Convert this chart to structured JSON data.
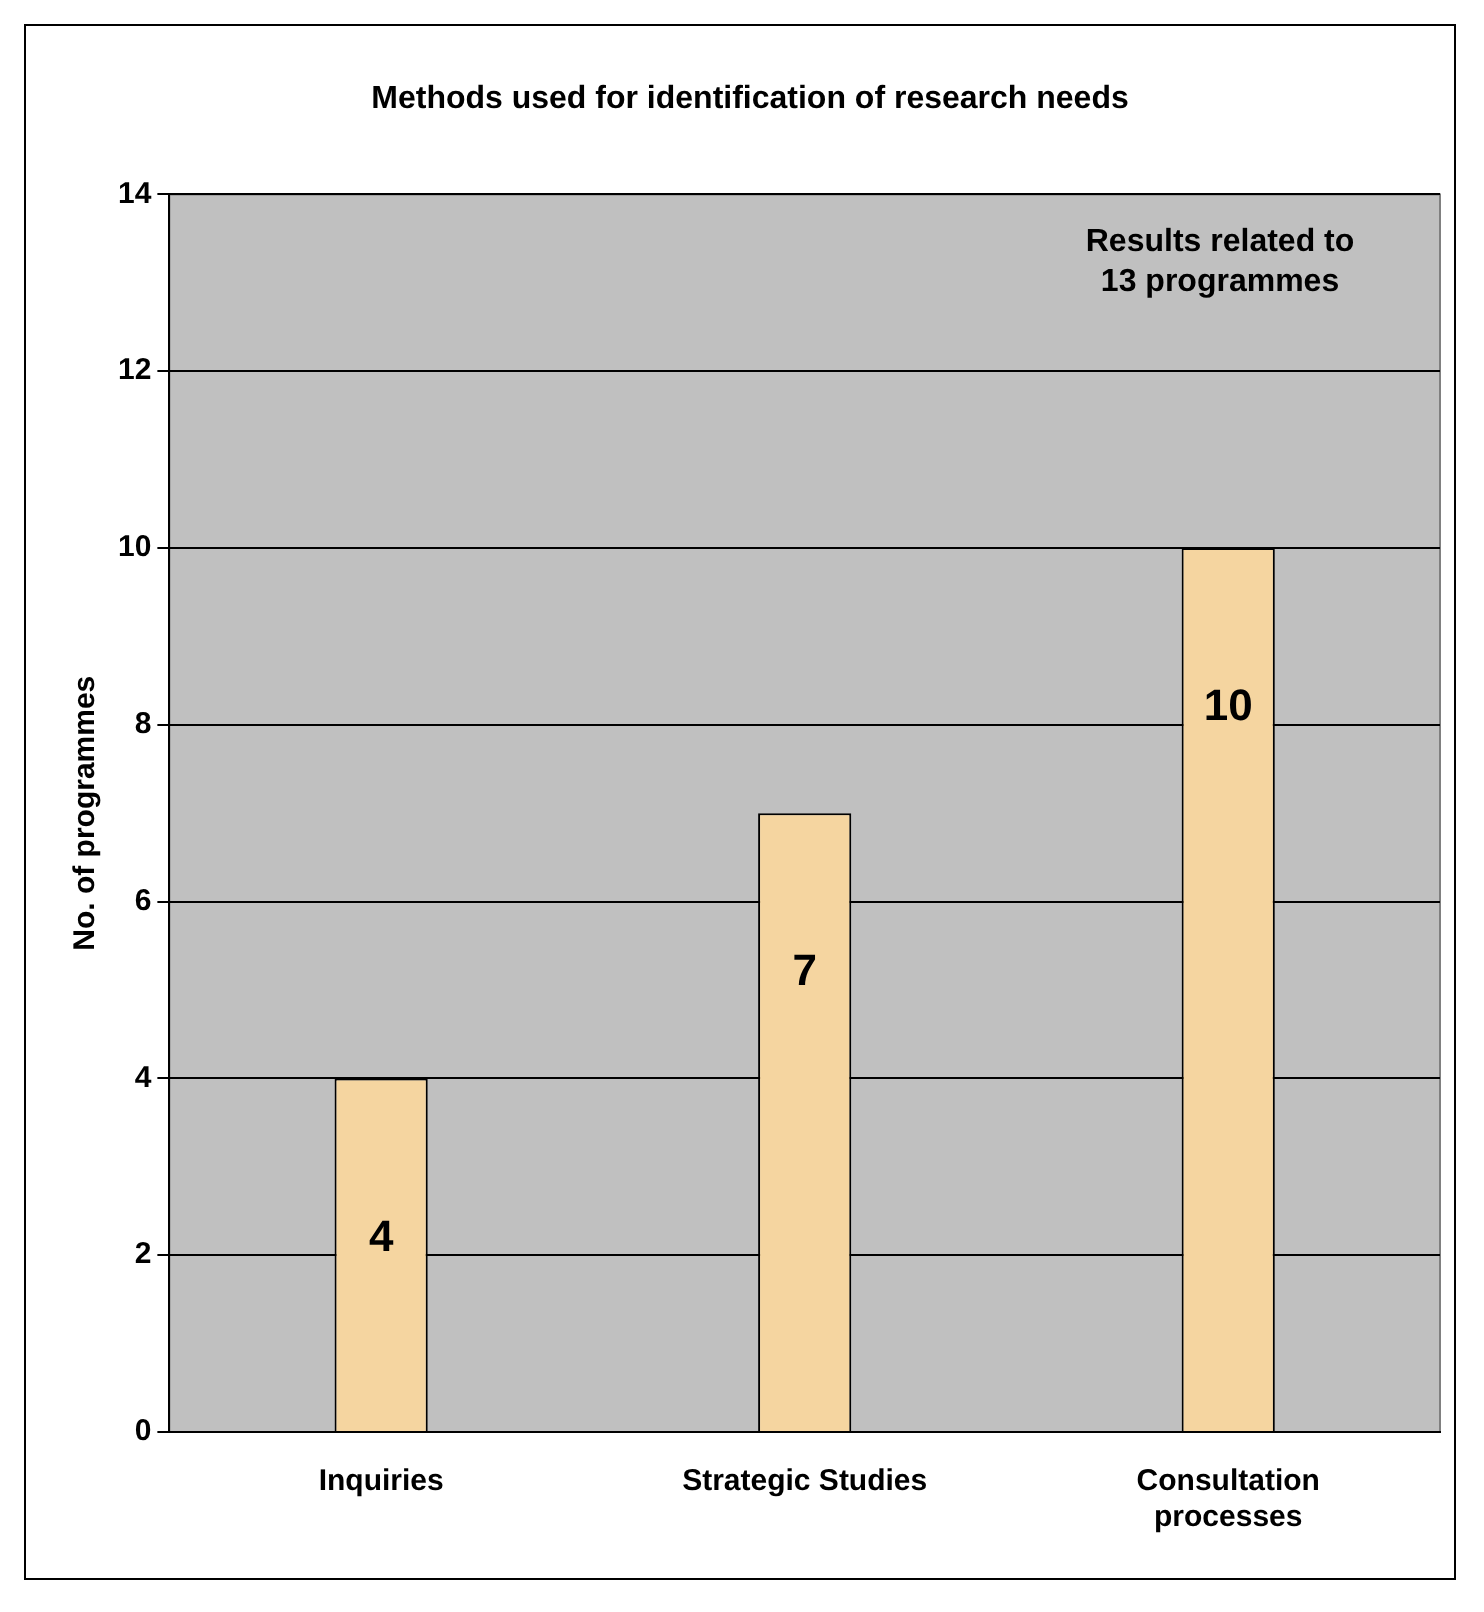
{
  "chart_data": {
    "type": "bar",
    "title": "Methods used for identification of research needs",
    "ylabel": "No. of programmes",
    "categories": [
      "Inquiries",
      "Strategic Studies",
      "Consultation processes"
    ],
    "values": [
      4,
      7,
      10
    ],
    "color": "#f5d5a0",
    "ylim": [
      0,
      14
    ],
    "yticks": [
      0,
      2,
      4,
      6,
      8,
      10,
      12,
      14
    ],
    "grid": "y",
    "legend": false,
    "data_labels": true,
    "annotations": [
      "Results related to\n13 programmes"
    ]
  }
}
